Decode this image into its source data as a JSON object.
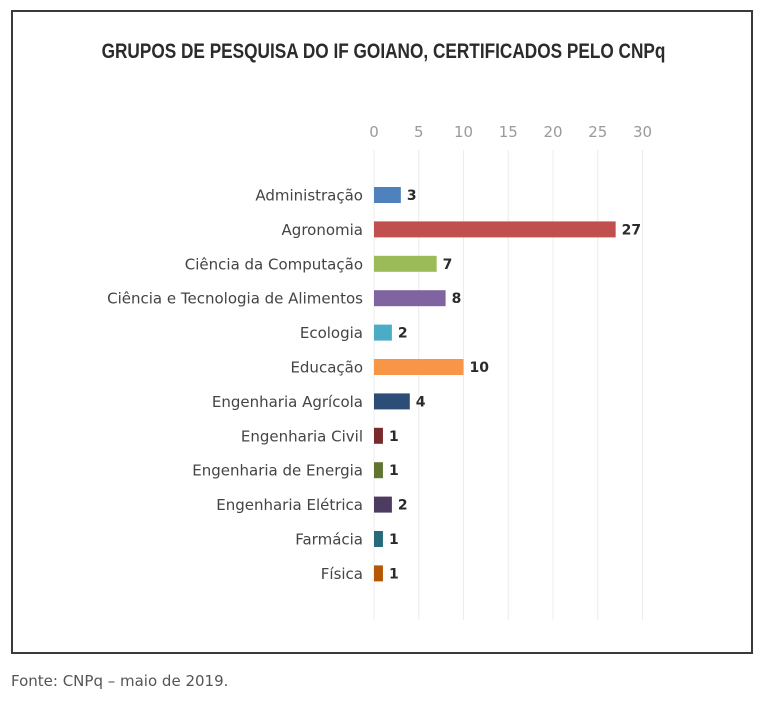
{
  "chart_data": {
    "type": "bar",
    "orientation": "horizontal",
    "title": "GRUPOS DE PESQUISA DO IF GOIANO, CERTIFICADOS PELO CNPq",
    "categories": [
      "Administração",
      "Agronomia",
      "Ciência da Computação",
      "Ciência e Tecnologia de Alimentos",
      "Ecologia",
      "Educação",
      "Engenharia Agrícola",
      "Engenharia Civil",
      "Engenharia de Energia",
      "Engenharia Elétrica",
      "Farmácia",
      "Física"
    ],
    "values": [
      3,
      27,
      7,
      8,
      2,
      10,
      4,
      1,
      1,
      2,
      1,
      1
    ],
    "colors": [
      "#4f81bd",
      "#c0504d",
      "#9bbb59",
      "#8064a2",
      "#4bacc6",
      "#f79646",
      "#2c4d75",
      "#772c2a",
      "#5f7530",
      "#4d3b62",
      "#276a7c",
      "#b65708"
    ],
    "xlim": [
      0,
      30
    ],
    "xticks": [
      0,
      5,
      10,
      15,
      20,
      25,
      30
    ],
    "xaxis_position": "top",
    "grid": true,
    "legend": "none"
  },
  "source_note": "Fonte: CNPq – maio de 2019."
}
